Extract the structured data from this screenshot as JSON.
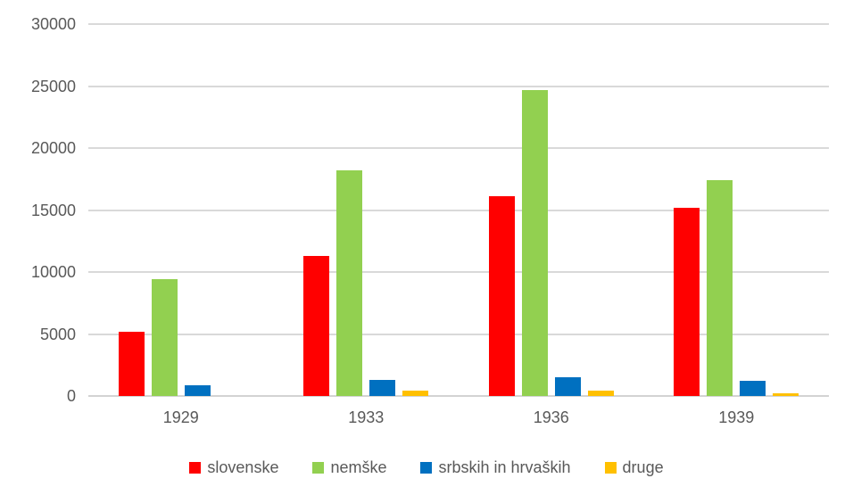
{
  "chart_data": {
    "type": "bar",
    "title": "",
    "xlabel": "",
    "ylabel": "",
    "categories": [
      "1929",
      "1933",
      "1936",
      "1939"
    ],
    "series": [
      {
        "name": "slovenske",
        "color": "#FF0000",
        "values": [
          5200,
          11300,
          16100,
          15200
        ]
      },
      {
        "name": "nemške",
        "color": "#92D050",
        "values": [
          9400,
          18200,
          24700,
          17400
        ]
      },
      {
        "name": "srbskih in hrvaških",
        "color": "#0070C0",
        "values": [
          900,
          1300,
          1500,
          1200
        ]
      },
      {
        "name": "druge",
        "color": "#FFC000",
        "values": [
          0,
          400,
          400,
          250
        ]
      }
    ],
    "ylim": [
      0,
      30000
    ],
    "ytick_step": 5000,
    "yticks": [
      "0",
      "5000",
      "10000",
      "15000",
      "20000",
      "25000",
      "30000"
    ],
    "grid": true,
    "legend_position": "bottom"
  },
  "colors": {
    "background": "#FFFFFF",
    "gridline": "#D9D9D9",
    "axis_line": "#D3D3D3",
    "tick_text": "#595959"
  }
}
